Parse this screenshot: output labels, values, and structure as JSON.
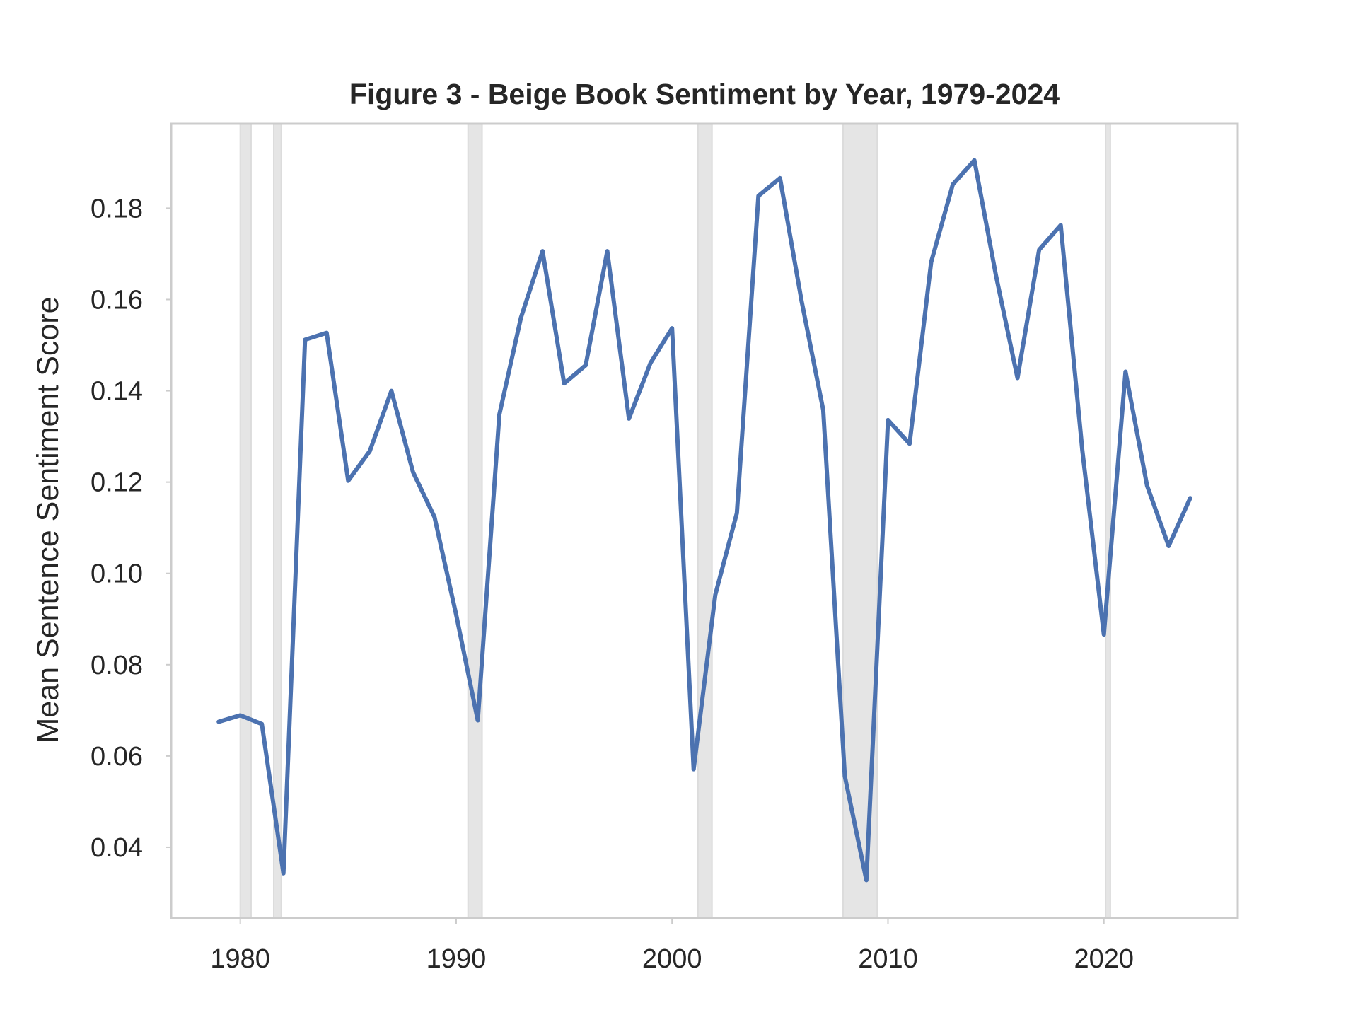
{
  "chart_data": {
    "type": "line",
    "title": "Figure 3 - Beige Book Sentiment by Year, 1979-2024",
    "xlabel": "",
    "ylabel": "Mean Sentence Sentiment Score",
    "xlim": [
      1976.8,
      2026.2
    ],
    "ylim": [
      0.0245,
      0.1985
    ],
    "xticks": [
      1980,
      1990,
      2000,
      2010,
      2020
    ],
    "xtick_labels": [
      "1980",
      "1990",
      "2000",
      "2010",
      "2020"
    ],
    "yticks": [
      0.04,
      0.06,
      0.08,
      0.1,
      0.12,
      0.14,
      0.16,
      0.18
    ],
    "ytick_labels": [
      "0.04",
      "0.06",
      "0.08",
      "0.10",
      "0.12",
      "0.14",
      "0.16",
      "0.18"
    ],
    "grid": false,
    "line_color": "#4c72b0",
    "recession_color": "#e5e5e5",
    "recessions": [
      [
        1980.0,
        1980.5
      ],
      [
        1981.55,
        1981.9
      ],
      [
        1990.55,
        1991.2
      ],
      [
        2001.2,
        2001.85
      ],
      [
        2007.92,
        2009.5
      ],
      [
        2020.08,
        2020.3
      ]
    ],
    "series": [
      {
        "x": [
          1979,
          1980,
          1981,
          1982,
          1983,
          1984,
          1985,
          1986,
          1987,
          1988,
          1989,
          1990,
          1991,
          1992,
          1993,
          1994,
          1995,
          1996,
          1997,
          1998,
          1999,
          2000,
          2001,
          2002,
          2003,
          2004,
          2005,
          2006,
          2007,
          2008,
          2009,
          2010,
          2011,
          2012,
          2013,
          2014,
          2015,
          2016,
          2017,
          2018,
          2019,
          2020,
          2021,
          2022,
          2023,
          2024
        ],
        "values": [
          0.0675,
          0.0689,
          0.067,
          0.0343,
          0.1512,
          0.1527,
          0.1203,
          0.1268,
          0.14,
          0.1222,
          0.1123,
          0.091,
          0.0678,
          0.1348,
          0.156,
          0.1706,
          0.1416,
          0.1456,
          0.1706,
          0.1339,
          0.1461,
          0.1537,
          0.0571,
          0.0953,
          0.1132,
          0.1827,
          0.1866,
          0.1596,
          0.1358,
          0.0556,
          0.0328,
          0.1336,
          0.1284,
          0.1682,
          0.1852,
          0.1905,
          0.1653,
          0.1428,
          0.1709,
          0.1763,
          0.127,
          0.0866,
          0.1442,
          0.1192,
          0.106,
          0.1165
        ]
      }
    ]
  }
}
